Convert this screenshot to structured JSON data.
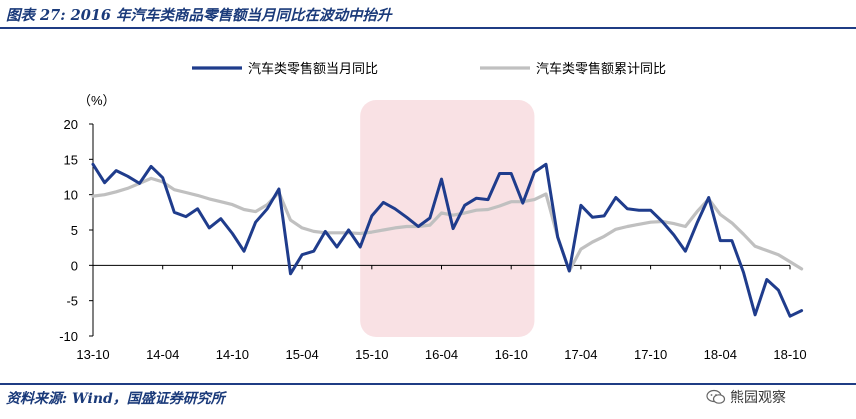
{
  "header": {
    "title": "图表 27: 2016 年汽车类商品零售额当月同比在波动中抬升"
  },
  "footer": {
    "source": "资料来源: Wind，国盛证券研究所",
    "watermark": "熊园观察",
    "watermark_icon": "wechat-icon"
  },
  "chart_data": {
    "type": "line",
    "unit_label": "（%）",
    "ylim": [
      -10,
      20
    ],
    "yticks": [
      20,
      15,
      10,
      5,
      0,
      -5,
      -10
    ],
    "xticks": [
      "13-10",
      "14-04",
      "14-10",
      "15-04",
      "15-10",
      "16-04",
      "16-10",
      "17-04",
      "17-10",
      "18-04",
      "18-10"
    ],
    "x_start": "2013-10",
    "x_end": "2018-10",
    "grid": false,
    "legend_position": "top",
    "highlight_range": [
      "2015-09",
      "2016-12"
    ],
    "highlight_color": "#f9e1e4",
    "series": [
      {
        "name": "汽车类零售额当月同比",
        "color": "#1f3c8c",
        "values": [
          14.3,
          11.7,
          13.4,
          12.6,
          11.6,
          14.0,
          12.4,
          7.5,
          6.9,
          8.0,
          5.3,
          6.6,
          4.5,
          2.0,
          6.1,
          8.0,
          10.8,
          -1.2,
          1.5,
          2.0,
          4.8,
          2.6,
          5.0,
          2.6,
          7.0,
          8.9,
          8.0,
          6.8,
          5.5,
          6.7,
          12.2,
          5.2,
          8.5,
          9.5,
          9.3,
          13.0,
          13.0,
          8.8,
          13.2,
          14.3,
          4.0,
          -0.8,
          8.5,
          6.8,
          7.0,
          9.6,
          8.0,
          7.8,
          7.8,
          6.2,
          4.3,
          2.0,
          6.0,
          9.6,
          3.5,
          3.5,
          -1.0,
          -7.0,
          -2.0,
          -3.5,
          -7.2,
          -6.4
        ]
      },
      {
        "name": "汽车类零售额累计同比",
        "color": "#c0c0c0",
        "values": [
          9.8,
          10.0,
          10.4,
          10.9,
          11.6,
          12.3,
          11.8,
          10.7,
          10.3,
          9.9,
          9.4,
          9.0,
          8.6,
          7.9,
          7.6,
          8.6,
          10.3,
          6.4,
          5.3,
          4.8,
          4.6,
          4.6,
          4.6,
          4.5,
          4.7,
          5.0,
          5.3,
          5.5,
          5.5,
          5.7,
          7.4,
          7.1,
          7.4,
          7.8,
          7.9,
          8.4,
          9.0,
          9.0,
          9.3,
          10.1,
          4.0,
          -0.8,
          2.3,
          3.3,
          4.1,
          5.1,
          5.5,
          5.8,
          6.1,
          6.2,
          5.9,
          5.5,
          7.6,
          9.4,
          7.2,
          6.0,
          4.4,
          2.7,
          2.1,
          1.5,
          0.5,
          -0.5
        ]
      }
    ]
  }
}
